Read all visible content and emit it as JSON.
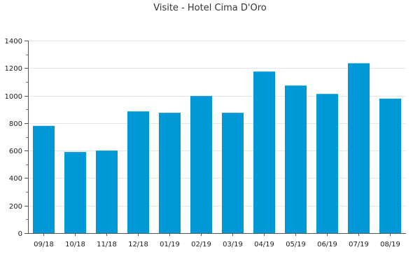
{
  "chart_data": {
    "type": "bar",
    "title": "Visite - Hotel Cima D'Oro",
    "categories": [
      "09/18",
      "10/18",
      "11/18",
      "12/18",
      "01/19",
      "02/19",
      "03/19",
      "04/19",
      "05/19",
      "06/19",
      "07/19",
      "08/19"
    ],
    "values": [
      780,
      590,
      600,
      885,
      875,
      997,
      875,
      1175,
      1073,
      1012,
      1235,
      978
    ],
    "ylim": [
      0,
      1400
    ],
    "yticks": [
      0,
      200,
      400,
      600,
      800,
      1000,
      1200,
      1400
    ],
    "grid": true,
    "bar_color": "#0099d8",
    "xlabel": "",
    "ylabel": ""
  }
}
